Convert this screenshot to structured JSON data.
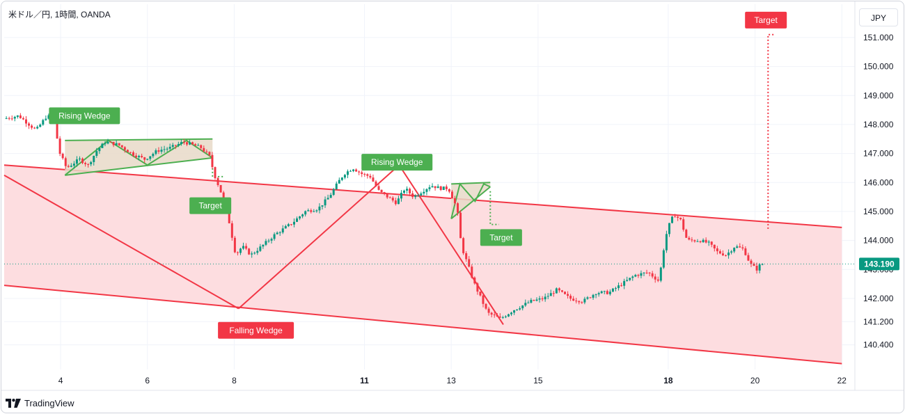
{
  "header": {
    "symbol": "米ドル／円, 1時間, OANDA",
    "currency": "JPY"
  },
  "footer": {
    "brand": "TradingView",
    "logo_icon": "tradingview-logo-icon"
  },
  "colors": {
    "bullish": "#089981",
    "bearish": "#f23645",
    "channel_line": "#f23645",
    "channel_fill": "#fddde0",
    "wedge_line": "#4caf50",
    "wedge_fill": "#e8d9c8",
    "label_green": "#4caf50",
    "label_red": "#f23645",
    "last_price": "#089981",
    "grid": "#f0f3fa"
  },
  "chart_data": {
    "type": "candlestick",
    "title": "米ドル／円, 1時間, OANDA",
    "xlabel": "",
    "ylabel": "",
    "x_unit": "day of month",
    "xlim": [
      2.7,
      22.3
    ],
    "ylim": [
      139.55,
      152.15
    ],
    "grid": true,
    "y_ticks": [
      {
        "value": 151.0,
        "label": "151.000"
      },
      {
        "value": 150.0,
        "label": "150.000"
      },
      {
        "value": 149.0,
        "label": "149.000"
      },
      {
        "value": 148.0,
        "label": "148.000"
      },
      {
        "value": 147.0,
        "label": "147.000"
      },
      {
        "value": 146.0,
        "label": "146.000"
      },
      {
        "value": 145.0,
        "label": "145.000"
      },
      {
        "value": 144.0,
        "label": "144.000"
      },
      {
        "value": 143.0,
        "label": "143.000"
      },
      {
        "value": 142.0,
        "label": "142.000"
      },
      {
        "value": 141.2,
        "label": "141.200"
      },
      {
        "value": 140.4,
        "label": "140.400"
      }
    ],
    "x_ticks": [
      {
        "value": 4,
        "label": "4"
      },
      {
        "value": 6,
        "label": "6"
      },
      {
        "value": 8,
        "label": "8"
      },
      {
        "value": 11,
        "label": "11",
        "bold": true
      },
      {
        "value": 13,
        "label": "13"
      },
      {
        "value": 15,
        "label": "15"
      },
      {
        "value": 18,
        "label": "18",
        "bold": true
      },
      {
        "value": 20,
        "label": "20"
      },
      {
        "value": 22,
        "label": "22"
      }
    ],
    "last_price": {
      "value": 143.19,
      "label": "143.190"
    },
    "price_path": [
      [
        2.75,
        148.2
      ],
      [
        3.1,
        148.3
      ],
      [
        3.5,
        147.8
      ],
      [
        3.75,
        148.3
      ],
      [
        3.9,
        148.2
      ],
      [
        4.05,
        147.0
      ],
      [
        4.2,
        146.5
      ],
      [
        4.5,
        146.8
      ],
      [
        4.7,
        146.6
      ],
      [
        4.9,
        147.1
      ],
      [
        5.1,
        147.4
      ],
      [
        5.4,
        147.3
      ],
      [
        5.7,
        147.0
      ],
      [
        6.0,
        146.8
      ],
      [
        6.3,
        147.1
      ],
      [
        6.6,
        147.2
      ],
      [
        6.9,
        147.4
      ],
      [
        7.1,
        147.3
      ],
      [
        7.3,
        147.2
      ],
      [
        7.5,
        146.9
      ],
      [
        7.6,
        146.3
      ],
      [
        7.75,
        145.7
      ],
      [
        7.9,
        145.0
      ],
      [
        8.1,
        143.5
      ],
      [
        8.25,
        143.8
      ],
      [
        8.45,
        143.5
      ],
      [
        8.7,
        143.8
      ],
      [
        9.0,
        144.2
      ],
      [
        9.4,
        144.6
      ],
      [
        9.7,
        145.0
      ],
      [
        10.0,
        145.1
      ],
      [
        10.25,
        145.5
      ],
      [
        10.5,
        146.1
      ],
      [
        10.6,
        146.3
      ],
      [
        10.8,
        146.5
      ],
      [
        11.0,
        146.3
      ],
      [
        11.2,
        146.2
      ],
      [
        11.4,
        145.7
      ],
      [
        11.6,
        145.5
      ],
      [
        11.8,
        145.3
      ],
      [
        12.0,
        145.8
      ],
      [
        12.2,
        145.5
      ],
      [
        12.4,
        145.7
      ],
      [
        12.6,
        145.9
      ],
      [
        12.8,
        145.8
      ],
      [
        13.0,
        145.8
      ],
      [
        13.2,
        145.1
      ],
      [
        13.3,
        143.8
      ],
      [
        13.6,
        142.5
      ],
      [
        13.9,
        141.5
      ],
      [
        14.2,
        141.3
      ],
      [
        14.5,
        141.6
      ],
      [
        14.9,
        141.9
      ],
      [
        15.2,
        142.0
      ],
      [
        15.5,
        142.3
      ],
      [
        15.8,
        142.0
      ],
      [
        16.1,
        141.9
      ],
      [
        16.4,
        142.2
      ],
      [
        16.7,
        142.2
      ],
      [
        17.0,
        142.5
      ],
      [
        17.3,
        142.8
      ],
      [
        17.6,
        142.9
      ],
      [
        17.85,
        142.6
      ],
      [
        18.0,
        144.1
      ],
      [
        18.1,
        144.6
      ],
      [
        18.2,
        144.9
      ],
      [
        18.35,
        144.7
      ],
      [
        18.5,
        144.0
      ],
      [
        18.8,
        144.0
      ],
      [
        19.0,
        143.9
      ],
      [
        19.2,
        143.6
      ],
      [
        19.4,
        143.5
      ],
      [
        19.6,
        143.8
      ],
      [
        19.8,
        143.7
      ],
      [
        19.95,
        143.2
      ],
      [
        20.1,
        143.0
      ],
      [
        20.2,
        143.19
      ]
    ],
    "annotations": {
      "channel": {
        "upper": [
          [
            2.7,
            146.6
          ],
          [
            22.0,
            144.45
          ]
        ],
        "lower": [
          [
            2.7,
            142.45
          ],
          [
            22.0,
            139.75
          ]
        ]
      },
      "wedge_lines": [
        [
          [
            2.7,
            146.25
          ],
          [
            8.1,
            141.65
          ]
        ],
        [
          [
            8.1,
            141.65
          ],
          [
            11.8,
            146.6
          ]
        ],
        [
          [
            11.8,
            146.6
          ],
          [
            14.2,
            141.1
          ]
        ]
      ],
      "rising_wedges": [
        {
          "upper": [
            [
              4.1,
              147.45
            ],
            [
              7.5,
              147.5
            ]
          ],
          "lower": [
            [
              4.1,
              146.25
            ],
            [
              7.5,
              146.85
            ]
          ],
          "zigzag": [
            [
              4.1,
              146.25
            ],
            [
              5.1,
              147.45
            ],
            [
              6.0,
              146.6
            ],
            [
              6.9,
              147.45
            ],
            [
              7.5,
              146.85
            ]
          ]
        },
        {
          "upper": [
            [
              13.0,
              145.95
            ],
            [
              13.9,
              146.0
            ]
          ],
          "lower": [
            [
              13.0,
              144.75
            ],
            [
              13.9,
              145.85
            ]
          ],
          "zigzag": [
            [
              13.0,
              144.75
            ],
            [
              13.2,
              145.95
            ],
            [
              13.55,
              145.35
            ],
            [
              13.75,
              145.95
            ],
            [
              13.9,
              145.85
            ]
          ]
        }
      ],
      "targets": [
        {
          "points": [
            [
              7.5,
              146.85
            ],
            [
              7.5,
              146.2
            ],
            [
              7.75,
              146.2
            ]
          ]
        },
        {
          "points": [
            [
              13.9,
              145.7
            ],
            [
              13.9,
              144.55
            ],
            [
              14.1,
              144.55
            ]
          ]
        },
        {
          "points": [
            [
              20.3,
              144.4
            ],
            [
              20.3,
              151.1
            ],
            [
              20.45,
              151.1
            ]
          ]
        }
      ],
      "labels": [
        {
          "text": "Rising Wedge",
          "x": 4.55,
          "y": 148.3,
          "color": "green"
        },
        {
          "text": "Target",
          "x": 7.45,
          "y": 145.2,
          "color": "green"
        },
        {
          "text": "Rising Wedge",
          "x": 11.75,
          "y": 146.7,
          "color": "green"
        },
        {
          "text": "Target",
          "x": 14.15,
          "y": 144.1,
          "color": "green"
        },
        {
          "text": "Falling Wedge",
          "x": 8.5,
          "y": 140.9,
          "color": "red"
        },
        {
          "text": "Target",
          "x": 20.25,
          "y": 151.6,
          "color": "red"
        }
      ]
    }
  }
}
